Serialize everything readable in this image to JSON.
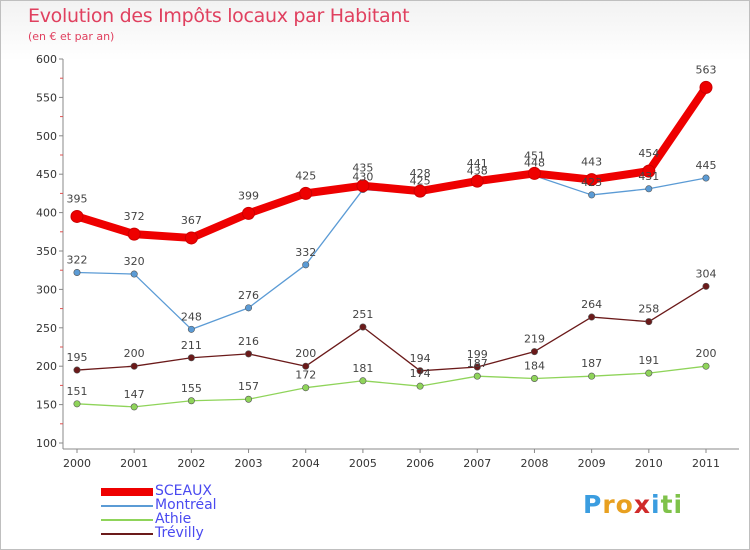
{
  "header": {
    "title": "Evolution des Impôts locaux par Habitant",
    "subtitle": "(en € et par an)"
  },
  "logo": {
    "letters": [
      "P",
      "r",
      "o",
      "x",
      "i",
      "t",
      "i"
    ],
    "colors": [
      "#3b9de0",
      "#e8a020",
      "#e8a020",
      "#d02a2a",
      "#3b9de0",
      "#7fc24a",
      "#7fc24a"
    ]
  },
  "chart_data": {
    "type": "line",
    "title": "Evolution des Impôts locaux par Habitant",
    "subtitle": "(en € et par an)",
    "xlabel": "",
    "ylabel": "",
    "x": [
      "2000",
      "2001",
      "2002",
      "2003",
      "2004",
      "2005",
      "2006",
      "2007",
      "2008",
      "2009",
      "2010",
      "2011"
    ],
    "ylim": [
      100,
      600
    ],
    "yticks": [
      100,
      150,
      200,
      250,
      300,
      350,
      400,
      450,
      500,
      550,
      600
    ],
    "grid": false,
    "legend_position": "bottom-left",
    "series": [
      {
        "name": "SCEAUX",
        "color": "#ee0000",
        "values": [
          395,
          372,
          367,
          399,
          425,
          435,
          428,
          441,
          451,
          443,
          454,
          563
        ]
      },
      {
        "name": "Montréal",
        "color": "#5b9bd5",
        "values": [
          322,
          320,
          248,
          276,
          332,
          430,
          425,
          438,
          448,
          423,
          431,
          445
        ]
      },
      {
        "name": "Athie",
        "color": "#8fd45a",
        "values": [
          151,
          147,
          155,
          157,
          172,
          181,
          174,
          187,
          184,
          187,
          191,
          200
        ]
      },
      {
        "name": "Trévilly",
        "color": "#6b1a1a",
        "values": [
          195,
          200,
          211,
          216,
          200,
          251,
          194,
          199,
          219,
          264,
          258,
          304
        ]
      }
    ]
  }
}
